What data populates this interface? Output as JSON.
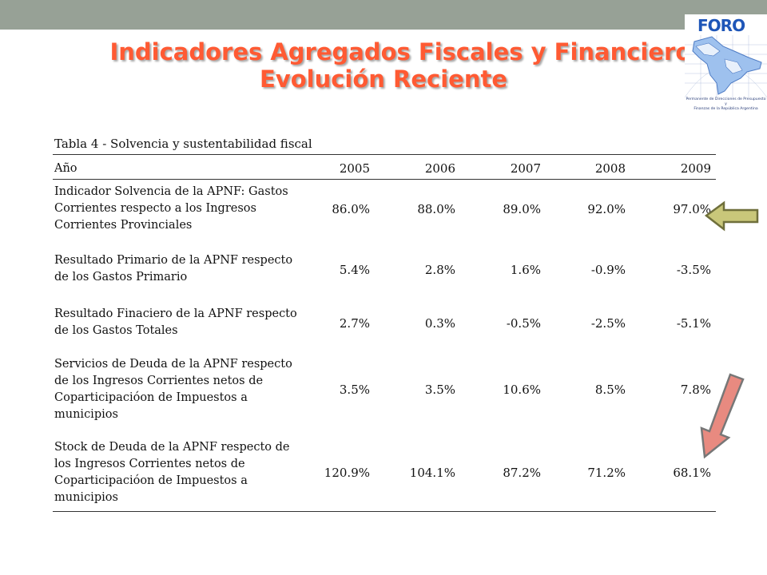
{
  "header": {
    "title_line1": "Indicadores Agregados Fiscales y Financieros",
    "title_line2": "Evolución Reciente"
  },
  "logo": {
    "name": "FORO",
    "caption_line1": "Permanente de Direcciones de Presupuesto y",
    "caption_line2": "Finanzas de la República Argentina"
  },
  "table": {
    "caption": "Tabla 4 - Solvencia y sustentabilidad fiscal",
    "year_header": "Año",
    "years": [
      "2005",
      "2006",
      "2007",
      "2008",
      "2009"
    ],
    "rows": [
      {
        "desc": [
          "Indicador Solvencia de la APNF: Gastos",
          "Corrientes respecto a los Ingresos",
          "Corrientes Provinciales"
        ],
        "values": [
          "86.0%",
          "88.0%",
          "89.0%",
          "92.0%",
          "97.0%"
        ]
      },
      {
        "desc": [
          "Resultado Primario de la APNF respecto",
          "de los Gastos Primario"
        ],
        "values": [
          "5.4%",
          "2.8%",
          "1.6%",
          "-0.9%",
          "-3.5%"
        ]
      },
      {
        "desc": [
          "Resultado Finaciero de la APNF respecto",
          "de los Gastos Totales"
        ],
        "values": [
          "2.7%",
          "0.3%",
          "-0.5%",
          "-2.5%",
          "-5.1%"
        ]
      },
      {
        "desc": [
          "Servicios de Deuda de la APNF respecto",
          "de  los Ingresos Corrientes netos de",
          "Coparticipacióon de Impuestos a",
          "municipios"
        ],
        "values": [
          "3.5%",
          "3.5%",
          "10.6%",
          "8.5%",
          "7.8%"
        ]
      },
      {
        "desc": [
          "Stock de Deuda de la APNF respecto de",
          "los Ingresos Corrientes netos de",
          "Coparticipacióon de Impuestos a",
          "municipios"
        ],
        "values": [
          "120.9%",
          "104.1%",
          "87.2%",
          "71.2%",
          "68.1%"
        ]
      }
    ]
  },
  "arrows": [
    {
      "name": "left-arrow",
      "color": "#c9c77a",
      "direction": "left"
    },
    {
      "name": "down-left-arrow",
      "color": "#e88a80",
      "direction": "down-left"
    }
  ]
}
